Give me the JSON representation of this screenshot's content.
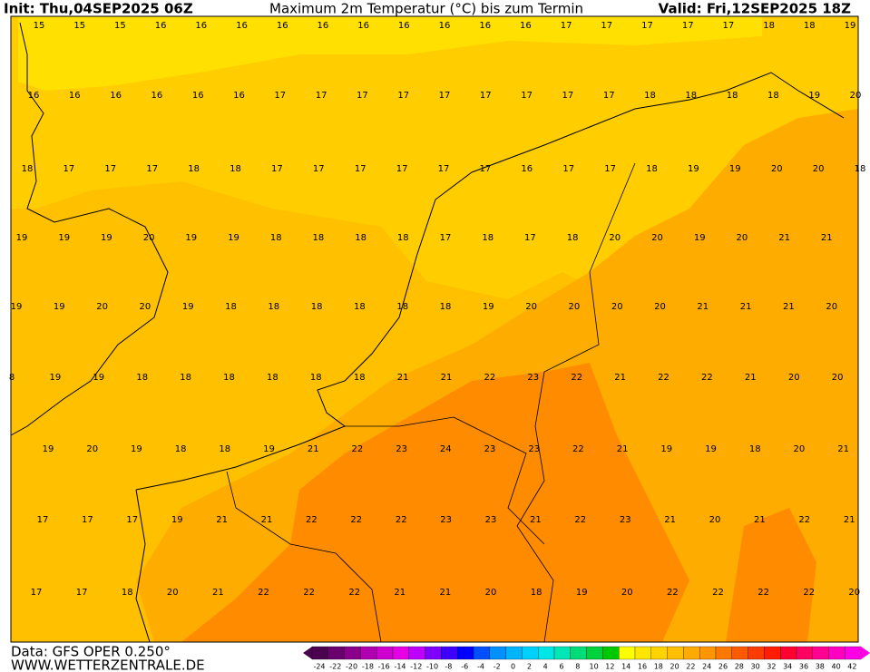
{
  "header": {
    "init": "Init: Thu,04SEP2025 06Z",
    "title": "Maximum 2m Temperatur (°C) bis zum Termin",
    "valid": "Valid: Fri,12SEP2025 18Z"
  },
  "map": {
    "labels": [
      [
        15,
        15,
        15,
        16,
        16,
        16,
        16,
        16,
        16,
        16,
        16,
        16,
        16,
        17,
        17,
        17,
        17,
        17,
        18,
        18,
        19
      ],
      [
        16,
        16,
        16,
        16,
        16,
        16,
        17,
        17,
        17,
        17,
        17,
        17,
        17,
        17,
        17,
        18,
        18,
        18,
        18,
        19,
        20
      ],
      [
        18,
        17,
        17,
        17,
        18,
        18,
        17,
        17,
        17,
        17,
        17,
        17,
        16,
        17,
        17,
        18,
        19,
        19,
        20,
        20,
        18
      ],
      [
        19,
        19,
        19,
        20,
        19,
        19,
        18,
        18,
        18,
        18,
        17,
        18,
        17,
        18,
        20,
        20,
        19,
        20,
        21,
        21
      ],
      [
        19,
        19,
        20,
        20,
        19,
        18,
        18,
        18,
        18,
        18,
        18,
        19,
        20,
        20,
        20,
        20,
        21,
        21,
        21,
        20
      ],
      [
        8,
        19,
        19,
        18,
        18,
        18,
        18,
        18,
        18,
        21,
        21,
        22,
        23,
        22,
        21,
        22,
        22,
        21,
        20,
        20
      ],
      [
        19,
        20,
        19,
        18,
        18,
        19,
        21,
        22,
        23,
        24,
        23,
        23,
        22,
        21,
        19,
        19,
        18,
        20,
        21
      ],
      [
        17,
        17,
        17,
        19,
        21,
        21,
        22,
        22,
        22,
        23,
        23,
        21,
        22,
        23,
        21,
        20,
        21,
        22,
        21
      ],
      [
        17,
        17,
        18,
        20,
        21,
        22,
        22,
        22,
        21,
        21,
        20,
        18,
        19,
        20,
        22,
        22,
        22,
        22,
        20
      ]
    ]
  },
  "footer": {
    "data": "Data: GFS OPER 0.250°",
    "site": "WWW.WETTERZENTRALE.DE"
  },
  "colorbar": {
    "ticks": [
      -24,
      -22,
      -20,
      -18,
      -16,
      -14,
      -12,
      -10,
      -8,
      -6,
      -4,
      -2,
      0,
      2,
      4,
      6,
      8,
      10,
      12,
      14,
      16,
      18,
      20,
      22,
      24,
      26,
      28,
      30,
      32,
      34,
      36,
      38,
      40,
      42
    ],
    "colors": [
      "#4b0050",
      "#6a006e",
      "#8a008a",
      "#b000b0",
      "#d000d0",
      "#e600e6",
      "#c000ff",
      "#8000ff",
      "#4000ff",
      "#0000ff",
      "#0050ff",
      "#0090ff",
      "#00b4ff",
      "#00d0ff",
      "#00e6e6",
      "#00e6b4",
      "#00dc78",
      "#00d23c",
      "#00c800",
      "#ffff00",
      "#ffe600",
      "#ffd200",
      "#ffbe00",
      "#ffaa00",
      "#ff9600",
      "#ff7800",
      "#ff5a00",
      "#ff3c00",
      "#ff1e00",
      "#ff0030",
      "#ff0060",
      "#ff0090",
      "#ff00c0",
      "#ff00e6"
    ]
  }
}
